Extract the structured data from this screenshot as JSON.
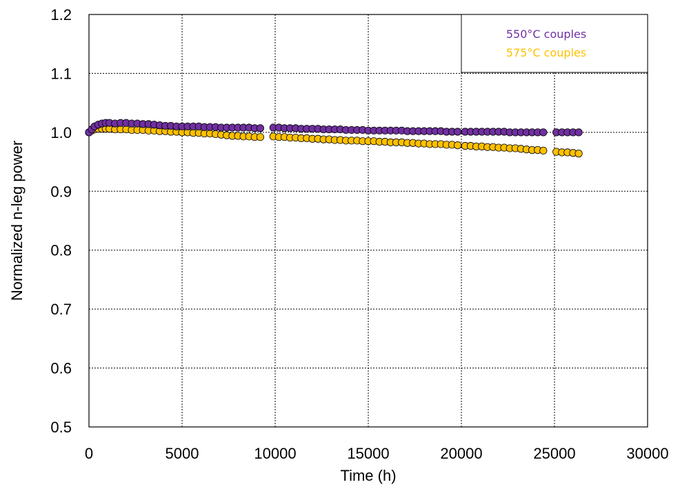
{
  "chart_data": {
    "type": "scatter",
    "xlabel": "Time (h)",
    "ylabel": "Normalized n-leg power",
    "xlim": [
      0,
      30000
    ],
    "ylim": [
      0.5,
      1.2
    ],
    "x_ticks": [
      "0",
      "5000",
      "10000",
      "15000",
      "20000",
      "25000",
      "30000"
    ],
    "y_ticks": [
      "0.5",
      "0.6",
      "0.7",
      "0.8",
      "0.9",
      "1.0",
      "1.1",
      "1.2"
    ],
    "grid": true,
    "legend_position": "top-right",
    "series": [
      {
        "name": "550°C couples",
        "color": "#7030A0",
        "points": [
          [
            0,
            1.0
          ],
          [
            150,
            1.005
          ],
          [
            300,
            1.01
          ],
          [
            500,
            1.013
          ],
          [
            700,
            1.015
          ],
          [
            900,
            1.016
          ],
          [
            1100,
            1.016
          ],
          [
            1400,
            1.015
          ],
          [
            1700,
            1.016
          ],
          [
            2000,
            1.016
          ],
          [
            2300,
            1.015
          ],
          [
            2600,
            1.015
          ],
          [
            2900,
            1.014
          ],
          [
            3200,
            1.014
          ],
          [
            3500,
            1.013
          ],
          [
            3800,
            1.012
          ],
          [
            4100,
            1.011
          ],
          [
            4400,
            1.011
          ],
          [
            4700,
            1.01
          ],
          [
            5000,
            1.01
          ],
          [
            5300,
            1.01
          ],
          [
            5600,
            1.01
          ],
          [
            5900,
            1.01
          ],
          [
            6200,
            1.009
          ],
          [
            6500,
            1.009
          ],
          [
            6800,
            1.009
          ],
          [
            7100,
            1.008
          ],
          [
            7400,
            1.008
          ],
          [
            7700,
            1.008
          ],
          [
            8000,
            1.008
          ],
          [
            8300,
            1.008
          ],
          [
            8600,
            1.008
          ],
          [
            8900,
            1.007
          ],
          [
            9200,
            1.007
          ],
          [
            9900,
            1.008
          ],
          [
            10200,
            1.008
          ],
          [
            10500,
            1.007
          ],
          [
            10800,
            1.007
          ],
          [
            11100,
            1.007
          ],
          [
            11400,
            1.006
          ],
          [
            11700,
            1.006
          ],
          [
            12000,
            1.006
          ],
          [
            12300,
            1.006
          ],
          [
            12600,
            1.005
          ],
          [
            12900,
            1.005
          ],
          [
            13200,
            1.005
          ],
          [
            13500,
            1.005
          ],
          [
            13800,
            1.004
          ],
          [
            14100,
            1.004
          ],
          [
            14400,
            1.004
          ],
          [
            14700,
            1.004
          ],
          [
            15000,
            1.003
          ],
          [
            15300,
            1.003
          ],
          [
            15600,
            1.003
          ],
          [
            15900,
            1.003
          ],
          [
            16200,
            1.003
          ],
          [
            16500,
            1.003
          ],
          [
            16800,
            1.003
          ],
          [
            17100,
            1.002
          ],
          [
            17400,
            1.002
          ],
          [
            17700,
            1.002
          ],
          [
            18000,
            1.002
          ],
          [
            18300,
            1.002
          ],
          [
            18600,
            1.002
          ],
          [
            18900,
            1.002
          ],
          [
            19200,
            1.001
          ],
          [
            19500,
            1.001
          ],
          [
            19800,
            1.001
          ],
          [
            20200,
            1.001
          ],
          [
            20500,
            1.001
          ],
          [
            20800,
            1.001
          ],
          [
            21100,
            1.001
          ],
          [
            21400,
            1.001
          ],
          [
            21700,
            1.001
          ],
          [
            22000,
            1.001
          ],
          [
            22300,
            1.001
          ],
          [
            22600,
            1.0
          ],
          [
            22900,
            1.0
          ],
          [
            23200,
            1.0
          ],
          [
            23500,
            1.0
          ],
          [
            23800,
            1.0
          ],
          [
            24100,
            1.0
          ],
          [
            24400,
            1.0
          ],
          [
            25100,
            1.0
          ],
          [
            25400,
            1.0
          ],
          [
            25700,
            1.0
          ],
          [
            26000,
            1.0
          ],
          [
            26300,
            1.0
          ]
        ]
      },
      {
        "name": "575°C couples",
        "color": "#FFC000",
        "points": [
          [
            0,
            1.0
          ],
          [
            150,
            1.003
          ],
          [
            300,
            1.005
          ],
          [
            500,
            1.006
          ],
          [
            700,
            1.006
          ],
          [
            900,
            1.006
          ],
          [
            1100,
            1.006
          ],
          [
            1400,
            1.005
          ],
          [
            1700,
            1.005
          ],
          [
            2000,
            1.005
          ],
          [
            2300,
            1.004
          ],
          [
            2600,
            1.004
          ],
          [
            2900,
            1.004
          ],
          [
            3200,
            1.003
          ],
          [
            3500,
            1.003
          ],
          [
            3800,
            1.002
          ],
          [
            4100,
            1.002
          ],
          [
            4400,
            1.001
          ],
          [
            4700,
            1.001
          ],
          [
            5000,
            1.0
          ],
          [
            5300,
            1.0
          ],
          [
            5600,
            0.999
          ],
          [
            5900,
            0.999
          ],
          [
            6200,
            0.998
          ],
          [
            6500,
            0.998
          ],
          [
            6800,
            0.997
          ],
          [
            7100,
            0.996
          ],
          [
            7400,
            0.995
          ],
          [
            7700,
            0.994
          ],
          [
            8000,
            0.994
          ],
          [
            8300,
            0.993
          ],
          [
            8600,
            0.993
          ],
          [
            8900,
            0.992
          ],
          [
            9200,
            0.992
          ],
          [
            9900,
            0.993
          ],
          [
            10200,
            0.992
          ],
          [
            10500,
            0.992
          ],
          [
            10800,
            0.991
          ],
          [
            11100,
            0.991
          ],
          [
            11400,
            0.99
          ],
          [
            11700,
            0.99
          ],
          [
            12000,
            0.989
          ],
          [
            12300,
            0.989
          ],
          [
            12600,
            0.988
          ],
          [
            12900,
            0.988
          ],
          [
            13200,
            0.987
          ],
          [
            13500,
            0.987
          ],
          [
            13800,
            0.986
          ],
          [
            14100,
            0.986
          ],
          [
            14400,
            0.986
          ],
          [
            14700,
            0.985
          ],
          [
            15000,
            0.985
          ],
          [
            15300,
            0.985
          ],
          [
            15600,
            0.984
          ],
          [
            15900,
            0.984
          ],
          [
            16200,
            0.983
          ],
          [
            16500,
            0.983
          ],
          [
            16800,
            0.983
          ],
          [
            17100,
            0.982
          ],
          [
            17400,
            0.982
          ],
          [
            17700,
            0.981
          ],
          [
            18000,
            0.981
          ],
          [
            18300,
            0.98
          ],
          [
            18600,
            0.98
          ],
          [
            18900,
            0.98
          ],
          [
            19200,
            0.979
          ],
          [
            19500,
            0.979
          ],
          [
            19800,
            0.978
          ],
          [
            20200,
            0.977
          ],
          [
            20500,
            0.977
          ],
          [
            20800,
            0.976
          ],
          [
            21100,
            0.976
          ],
          [
            21400,
            0.975
          ],
          [
            21700,
            0.975
          ],
          [
            22000,
            0.974
          ],
          [
            22300,
            0.974
          ],
          [
            22600,
            0.973
          ],
          [
            22900,
            0.973
          ],
          [
            23200,
            0.972
          ],
          [
            23500,
            0.971
          ],
          [
            23800,
            0.97
          ],
          [
            24100,
            0.97
          ],
          [
            24400,
            0.969
          ],
          [
            25100,
            0.967
          ],
          [
            25400,
            0.966
          ],
          [
            25700,
            0.966
          ],
          [
            26000,
            0.965
          ],
          [
            26300,
            0.964
          ]
        ]
      }
    ]
  }
}
